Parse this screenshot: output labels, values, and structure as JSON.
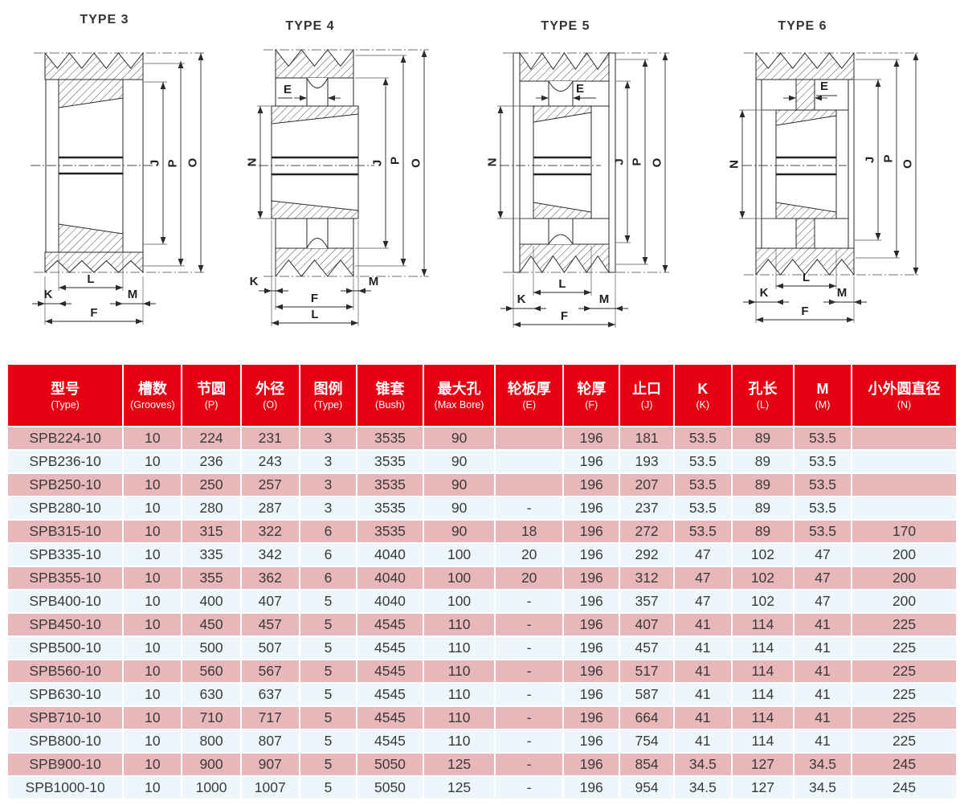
{
  "colors": {
    "header_bg": "#e60012",
    "header_text": "#ffffff",
    "row_pink": "#e8b7ba",
    "row_light": "#edf6fb",
    "body_text": "#3a3a3a",
    "drawing_line": "#2a2a2a"
  },
  "diagrams": [
    {
      "title": "TYPE 3",
      "labels": {
        "J": "J",
        "P": "P",
        "O": "O",
        "K": "K",
        "L": "L",
        "M": "M",
        "F": "F"
      }
    },
    {
      "title": "TYPE 4",
      "labels": {
        "E": "E",
        "N": "N",
        "J": "J",
        "P": "P",
        "O": "O",
        "K": "K",
        "M": "M",
        "F": "F",
        "L": "L"
      }
    },
    {
      "title": "TYPE 5",
      "labels": {
        "E": "E",
        "N": "N",
        "J": "J",
        "P": "P",
        "O": "O",
        "K": "K",
        "L": "L",
        "M": "M",
        "F": "F"
      }
    },
    {
      "title": "TYPE 6",
      "labels": {
        "E": "E",
        "N": "N",
        "J": "J",
        "P": "P",
        "O": "O",
        "K": "K",
        "L": "L",
        "M": "M",
        "F": "F"
      }
    }
  ],
  "table": {
    "columns": [
      {
        "zh": "型号",
        "en": "(Type)"
      },
      {
        "zh": "槽数",
        "en": "(Grooves)"
      },
      {
        "zh": "节圆",
        "en": "(P)"
      },
      {
        "zh": "外径",
        "en": "(O)"
      },
      {
        "zh": "图例",
        "en": "(Type)"
      },
      {
        "zh": "锥套",
        "en": "(Bush)"
      },
      {
        "zh": "最大孔",
        "en": "(Max Bore)"
      },
      {
        "zh": "轮板厚",
        "en": "(E)"
      },
      {
        "zh": "轮厚",
        "en": "(F)"
      },
      {
        "zh": "止口",
        "en": "(J)"
      },
      {
        "zh": "K",
        "en": "(K)"
      },
      {
        "zh": "孔长",
        "en": "(L)"
      },
      {
        "zh": "M",
        "en": "(M)"
      },
      {
        "zh": "小外圆直径",
        "en": "(N)"
      }
    ],
    "col_widths_pct": [
      12.33,
      6.17,
      6.17,
      6.17,
      6.0,
      7.0,
      7.58,
      7.17,
      5.92,
      5.67,
      6.08,
      6.5,
      6.08,
      11.16
    ],
    "rows": [
      [
        "SPB224-10",
        "10",
        "224",
        "231",
        "3",
        "3535",
        "90",
        "",
        "196",
        "181",
        "53.5",
        "89",
        "53.5",
        ""
      ],
      [
        "SPB236-10",
        "10",
        "236",
        "243",
        "3",
        "3535",
        "90",
        "",
        "196",
        "193",
        "53.5",
        "89",
        "53.5",
        ""
      ],
      [
        "SPB250-10",
        "10",
        "250",
        "257",
        "3",
        "3535",
        "90",
        "",
        "196",
        "207",
        "53.5",
        "89",
        "53.5",
        ""
      ],
      [
        "SPB280-10",
        "10",
        "280",
        "287",
        "3",
        "3535",
        "90",
        "-",
        "196",
        "237",
        "53.5",
        "89",
        "53.5",
        ""
      ],
      [
        "SPB315-10",
        "10",
        "315",
        "322",
        "6",
        "3535",
        "90",
        "18",
        "196",
        "272",
        "53.5",
        "89",
        "53.5",
        "170"
      ],
      [
        "SPB335-10",
        "10",
        "335",
        "342",
        "6",
        "4040",
        "100",
        "20",
        "196",
        "292",
        "47",
        "102",
        "47",
        "200"
      ],
      [
        "SPB355-10",
        "10",
        "355",
        "362",
        "6",
        "4040",
        "100",
        "20",
        "196",
        "312",
        "47",
        "102",
        "47",
        "200"
      ],
      [
        "SPB400-10",
        "10",
        "400",
        "407",
        "5",
        "4040",
        "100",
        "-",
        "196",
        "357",
        "47",
        "102",
        "47",
        "200"
      ],
      [
        "SPB450-10",
        "10",
        "450",
        "457",
        "5",
        "4545",
        "110",
        "-",
        "196",
        "407",
        "41",
        "114",
        "41",
        "225"
      ],
      [
        "SPB500-10",
        "10",
        "500",
        "507",
        "5",
        "4545",
        "110",
        "-",
        "196",
        "457",
        "41",
        "114",
        "41",
        "225"
      ],
      [
        "SPB560-10",
        "10",
        "560",
        "567",
        "5",
        "4545",
        "110",
        "-",
        "196",
        "517",
        "41",
        "114",
        "41",
        "225"
      ],
      [
        "SPB630-10",
        "10",
        "630",
        "637",
        "5",
        "4545",
        "110",
        "-",
        "196",
        "587",
        "41",
        "114",
        "41",
        "225"
      ],
      [
        "SPB710-10",
        "10",
        "710",
        "717",
        "5",
        "4545",
        "110",
        "-",
        "196",
        "664",
        "41",
        "114",
        "41",
        "225"
      ],
      [
        "SPB800-10",
        "10",
        "800",
        "807",
        "5",
        "4545",
        "110",
        "-",
        "196",
        "754",
        "41",
        "114",
        "41",
        "225"
      ],
      [
        "SPB900-10",
        "10",
        "900",
        "907",
        "5",
        "5050",
        "125",
        "-",
        "196",
        "854",
        "34.5",
        "127",
        "34.5",
        "245"
      ],
      [
        "SPB1000-10",
        "10",
        "1000",
        "1007",
        "5",
        "5050",
        "125",
        "-",
        "196",
        "954",
        "34.5",
        "127",
        "34.5",
        "245"
      ]
    ]
  }
}
